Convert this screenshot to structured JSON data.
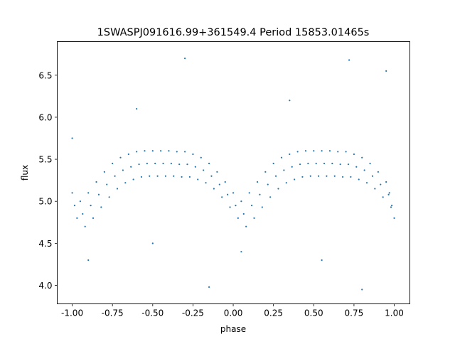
{
  "chart_data": {
    "type": "scatter",
    "title": "1SWASPJ091616.99+361549.4 Period 15853.01465s",
    "xlabel": "phase",
    "ylabel": "flux",
    "xlim": [
      -1.093,
      1.097
    ],
    "ylim": [
      3.78,
      6.9
    ],
    "xticks": [
      "-1.00",
      "-0.75",
      "-0.50",
      "-0.25",
      "0.00",
      "0.25",
      "0.50",
      "0.75",
      "1.00"
    ],
    "yticks": [
      "4.0",
      "4.5",
      "5.0",
      "5.5",
      "6.0",
      "6.5"
    ],
    "grid": false,
    "color": "#1f77b4",
    "points": [
      [
        -1.0,
        5.1
      ],
      [
        -0.985,
        4.95
      ],
      [
        -0.97,
        4.8
      ],
      [
        -0.95,
        5.0
      ],
      [
        -0.935,
        4.85
      ],
      [
        -0.92,
        4.7
      ],
      [
        -0.9,
        5.1
      ],
      [
        -0.885,
        4.95
      ],
      [
        -0.87,
        4.8
      ],
      [
        -0.85,
        5.23
      ],
      [
        -0.835,
        5.08
      ],
      [
        -0.82,
        4.93
      ],
      [
        -0.8,
        5.35
      ],
      [
        -0.785,
        5.2
      ],
      [
        -0.77,
        5.05
      ],
      [
        -0.75,
        5.45
      ],
      [
        -0.735,
        5.3
      ],
      [
        -0.72,
        5.15
      ],
      [
        -0.7,
        5.52
      ],
      [
        -0.685,
        5.37
      ],
      [
        -0.67,
        5.22
      ],
      [
        -0.65,
        5.56
      ],
      [
        -0.635,
        5.41
      ],
      [
        -0.62,
        5.26
      ],
      [
        -0.6,
        5.59
      ],
      [
        -0.585,
        5.44
      ],
      [
        -0.57,
        5.29
      ],
      [
        -0.55,
        5.6
      ],
      [
        -0.535,
        5.45
      ],
      [
        -0.52,
        5.3
      ],
      [
        -0.5,
        5.6
      ],
      [
        -0.485,
        5.45
      ],
      [
        -0.47,
        5.3
      ],
      [
        -0.45,
        5.6
      ],
      [
        -0.435,
        5.45
      ],
      [
        -0.42,
        5.3
      ],
      [
        -0.4,
        5.6
      ],
      [
        -0.385,
        5.45
      ],
      [
        -0.37,
        5.3
      ],
      [
        -0.35,
        5.59
      ],
      [
        -0.335,
        5.44
      ],
      [
        -0.32,
        5.29
      ],
      [
        -0.3,
        5.59
      ],
      [
        -0.285,
        5.44
      ],
      [
        -0.27,
        5.29
      ],
      [
        -0.25,
        5.56
      ],
      [
        -0.235,
        5.41
      ],
      [
        -0.22,
        5.26
      ],
      [
        -0.2,
        5.52
      ],
      [
        -0.185,
        5.37
      ],
      [
        -0.17,
        5.22
      ],
      [
        -0.15,
        5.45
      ],
      [
        -0.135,
        5.3
      ],
      [
        -0.12,
        5.15
      ],
      [
        -0.1,
        5.35
      ],
      [
        -0.085,
        5.2
      ],
      [
        -0.07,
        5.05
      ],
      [
        -0.05,
        5.23
      ],
      [
        -0.035,
        5.08
      ],
      [
        -0.02,
        4.93
      ],
      [
        0.0,
        5.1
      ],
      [
        0.015,
        4.95
      ],
      [
        0.03,
        4.8
      ],
      [
        0.05,
        5.0
      ],
      [
        0.065,
        4.85
      ],
      [
        0.08,
        4.7
      ],
      [
        0.1,
        5.1
      ],
      [
        0.115,
        4.95
      ],
      [
        0.13,
        4.8
      ],
      [
        0.15,
        5.23
      ],
      [
        0.165,
        5.08
      ],
      [
        0.18,
        4.93
      ],
      [
        0.2,
        5.35
      ],
      [
        0.215,
        5.2
      ],
      [
        0.23,
        5.05
      ],
      [
        0.25,
        5.45
      ],
      [
        0.265,
        5.3
      ],
      [
        0.28,
        5.15
      ],
      [
        0.3,
        5.52
      ],
      [
        0.315,
        5.37
      ],
      [
        0.33,
        5.22
      ],
      [
        0.35,
        5.56
      ],
      [
        0.365,
        5.41
      ],
      [
        0.38,
        5.26
      ],
      [
        0.4,
        5.59
      ],
      [
        0.415,
        5.44
      ],
      [
        0.43,
        5.29
      ],
      [
        0.45,
        5.6
      ],
      [
        0.465,
        5.45
      ],
      [
        0.48,
        5.3
      ],
      [
        0.5,
        5.6
      ],
      [
        0.515,
        5.45
      ],
      [
        0.53,
        5.3
      ],
      [
        0.55,
        5.6
      ],
      [
        0.565,
        5.45
      ],
      [
        0.58,
        5.3
      ],
      [
        0.6,
        5.6
      ],
      [
        0.615,
        5.45
      ],
      [
        0.63,
        5.3
      ],
      [
        0.65,
        5.59
      ],
      [
        0.665,
        5.44
      ],
      [
        0.68,
        5.29
      ],
      [
        0.7,
        5.59
      ],
      [
        0.715,
        5.44
      ],
      [
        0.73,
        5.29
      ],
      [
        0.75,
        5.56
      ],
      [
        0.765,
        5.41
      ],
      [
        0.78,
        5.26
      ],
      [
        0.8,
        5.52
      ],
      [
        0.815,
        5.37
      ],
      [
        0.83,
        5.22
      ],
      [
        0.85,
        5.45
      ],
      [
        0.865,
        5.3
      ],
      [
        0.88,
        5.15
      ],
      [
        0.9,
        5.35
      ],
      [
        0.915,
        5.2
      ],
      [
        0.93,
        5.05
      ],
      [
        0.95,
        5.23
      ],
      [
        0.965,
        5.08
      ],
      [
        0.98,
        4.93
      ],
      [
        0.97,
        5.1
      ],
      [
        0.985,
        4.95
      ],
      [
        1.0,
        4.8
      ],
      [
        -0.9,
        4.3
      ],
      [
        -0.6,
        6.1
      ],
      [
        -0.3,
        6.7
      ],
      [
        -0.15,
        3.98
      ],
      [
        0.05,
        4.4
      ],
      [
        0.35,
        6.2
      ],
      [
        0.55,
        4.3
      ],
      [
        0.72,
        6.68
      ],
      [
        0.8,
        3.95
      ],
      [
        -0.5,
        4.5
      ],
      [
        0.95,
        6.55
      ],
      [
        -1.0,
        5.75
      ]
    ]
  }
}
